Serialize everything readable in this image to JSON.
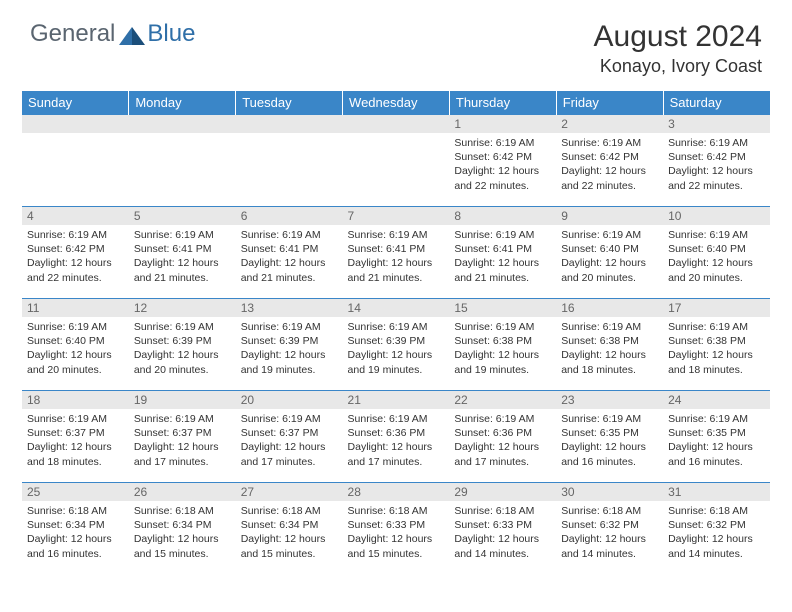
{
  "logo": {
    "general": "General",
    "blue": "Blue"
  },
  "title": "August 2024",
  "location": "Konayo, Ivory Coast",
  "colors": {
    "header_bg": "#3a86c8",
    "header_text": "#ffffff",
    "daynum_bg": "#e8e8e8",
    "daynum_text": "#666666",
    "body_text": "#333333",
    "border": "#3a86c8",
    "logo_general": "#5a6570",
    "logo_blue": "#2f6fa8"
  },
  "weekdays": [
    "Sunday",
    "Monday",
    "Tuesday",
    "Wednesday",
    "Thursday",
    "Friday",
    "Saturday"
  ],
  "weeks": [
    [
      null,
      null,
      null,
      null,
      {
        "n": "1",
        "sr": "6:19 AM",
        "ss": "6:42 PM",
        "dl": "12 hours and 22 minutes."
      },
      {
        "n": "2",
        "sr": "6:19 AM",
        "ss": "6:42 PM",
        "dl": "12 hours and 22 minutes."
      },
      {
        "n": "3",
        "sr": "6:19 AM",
        "ss": "6:42 PM",
        "dl": "12 hours and 22 minutes."
      }
    ],
    [
      {
        "n": "4",
        "sr": "6:19 AM",
        "ss": "6:42 PM",
        "dl": "12 hours and 22 minutes."
      },
      {
        "n": "5",
        "sr": "6:19 AM",
        "ss": "6:41 PM",
        "dl": "12 hours and 21 minutes."
      },
      {
        "n": "6",
        "sr": "6:19 AM",
        "ss": "6:41 PM",
        "dl": "12 hours and 21 minutes."
      },
      {
        "n": "7",
        "sr": "6:19 AM",
        "ss": "6:41 PM",
        "dl": "12 hours and 21 minutes."
      },
      {
        "n": "8",
        "sr": "6:19 AM",
        "ss": "6:41 PM",
        "dl": "12 hours and 21 minutes."
      },
      {
        "n": "9",
        "sr": "6:19 AM",
        "ss": "6:40 PM",
        "dl": "12 hours and 20 minutes."
      },
      {
        "n": "10",
        "sr": "6:19 AM",
        "ss": "6:40 PM",
        "dl": "12 hours and 20 minutes."
      }
    ],
    [
      {
        "n": "11",
        "sr": "6:19 AM",
        "ss": "6:40 PM",
        "dl": "12 hours and 20 minutes."
      },
      {
        "n": "12",
        "sr": "6:19 AM",
        "ss": "6:39 PM",
        "dl": "12 hours and 20 minutes."
      },
      {
        "n": "13",
        "sr": "6:19 AM",
        "ss": "6:39 PM",
        "dl": "12 hours and 19 minutes."
      },
      {
        "n": "14",
        "sr": "6:19 AM",
        "ss": "6:39 PM",
        "dl": "12 hours and 19 minutes."
      },
      {
        "n": "15",
        "sr": "6:19 AM",
        "ss": "6:38 PM",
        "dl": "12 hours and 19 minutes."
      },
      {
        "n": "16",
        "sr": "6:19 AM",
        "ss": "6:38 PM",
        "dl": "12 hours and 18 minutes."
      },
      {
        "n": "17",
        "sr": "6:19 AM",
        "ss": "6:38 PM",
        "dl": "12 hours and 18 minutes."
      }
    ],
    [
      {
        "n": "18",
        "sr": "6:19 AM",
        "ss": "6:37 PM",
        "dl": "12 hours and 18 minutes."
      },
      {
        "n": "19",
        "sr": "6:19 AM",
        "ss": "6:37 PM",
        "dl": "12 hours and 17 minutes."
      },
      {
        "n": "20",
        "sr": "6:19 AM",
        "ss": "6:37 PM",
        "dl": "12 hours and 17 minutes."
      },
      {
        "n": "21",
        "sr": "6:19 AM",
        "ss": "6:36 PM",
        "dl": "12 hours and 17 minutes."
      },
      {
        "n": "22",
        "sr": "6:19 AM",
        "ss": "6:36 PM",
        "dl": "12 hours and 17 minutes."
      },
      {
        "n": "23",
        "sr": "6:19 AM",
        "ss": "6:35 PM",
        "dl": "12 hours and 16 minutes."
      },
      {
        "n": "24",
        "sr": "6:19 AM",
        "ss": "6:35 PM",
        "dl": "12 hours and 16 minutes."
      }
    ],
    [
      {
        "n": "25",
        "sr": "6:18 AM",
        "ss": "6:34 PM",
        "dl": "12 hours and 16 minutes."
      },
      {
        "n": "26",
        "sr": "6:18 AM",
        "ss": "6:34 PM",
        "dl": "12 hours and 15 minutes."
      },
      {
        "n": "27",
        "sr": "6:18 AM",
        "ss": "6:34 PM",
        "dl": "12 hours and 15 minutes."
      },
      {
        "n": "28",
        "sr": "6:18 AM",
        "ss": "6:33 PM",
        "dl": "12 hours and 15 minutes."
      },
      {
        "n": "29",
        "sr": "6:18 AM",
        "ss": "6:33 PM",
        "dl": "12 hours and 14 minutes."
      },
      {
        "n": "30",
        "sr": "6:18 AM",
        "ss": "6:32 PM",
        "dl": "12 hours and 14 minutes."
      },
      {
        "n": "31",
        "sr": "6:18 AM",
        "ss": "6:32 PM",
        "dl": "12 hours and 14 minutes."
      }
    ]
  ]
}
